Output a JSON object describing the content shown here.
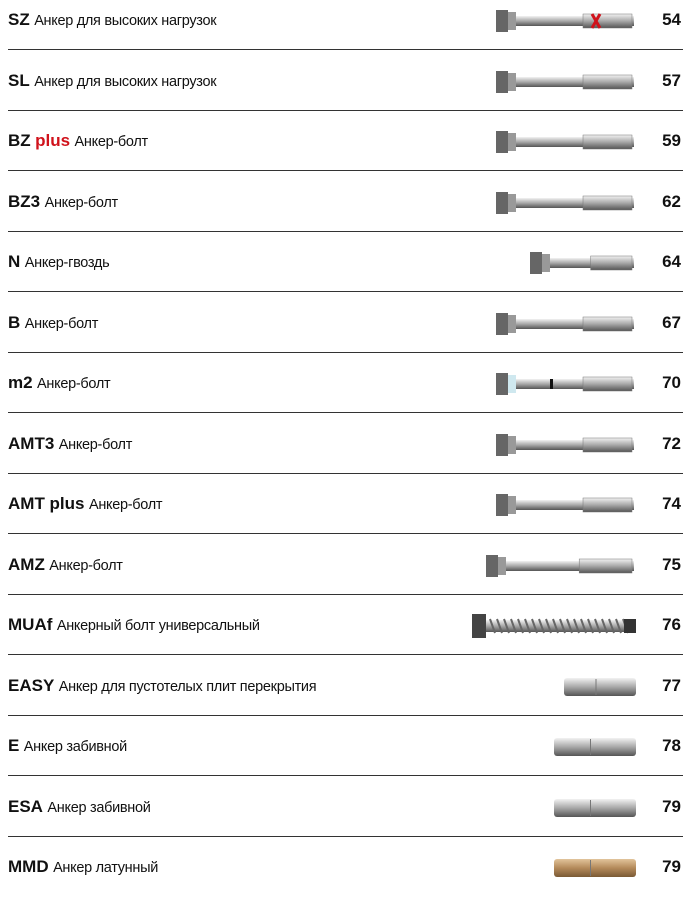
{
  "items": [
    {
      "code": "SZ",
      "desc": "Анкер для высоких нагрузок",
      "page": 54
    },
    {
      "code": "SL",
      "desc": "Анкер для высоких нагрузок",
      "page": 57
    },
    {
      "code": "BZ",
      "code_accent": "plus",
      "desc": "Анкер-болт",
      "page": 59
    },
    {
      "code": "BZ3",
      "desc": "Анкер-болт",
      "page": 62
    },
    {
      "code": "N",
      "desc": "Анкер-гвоздь",
      "page": 64
    },
    {
      "code": "B",
      "desc": "Анкер-болт",
      "page": 67
    },
    {
      "code": "m2",
      "desc": "Анкер-болт",
      "page": 70
    },
    {
      "code": "AMT3",
      "desc": "Анкер-болт",
      "page": 72
    },
    {
      "code": "AMT plus",
      "desc": "Анкер-болт",
      "page": 74
    },
    {
      "code": "AMZ",
      "desc": "Анкер-болт",
      "page": 75
    },
    {
      "code": "MUAf",
      "desc": "Анкерный болт универсальный",
      "page": 76
    },
    {
      "code": "EASY",
      "desc": "Анкер для пустотелых плит перекрытия",
      "page": 77
    },
    {
      "code": "E",
      "desc": "Анкер забивной",
      "page": 78
    },
    {
      "code": "ESA",
      "desc": "Анкер забивной",
      "page": 79
    },
    {
      "code": "MMD",
      "desc": "Анкер латунный",
      "page": 79
    }
  ]
}
